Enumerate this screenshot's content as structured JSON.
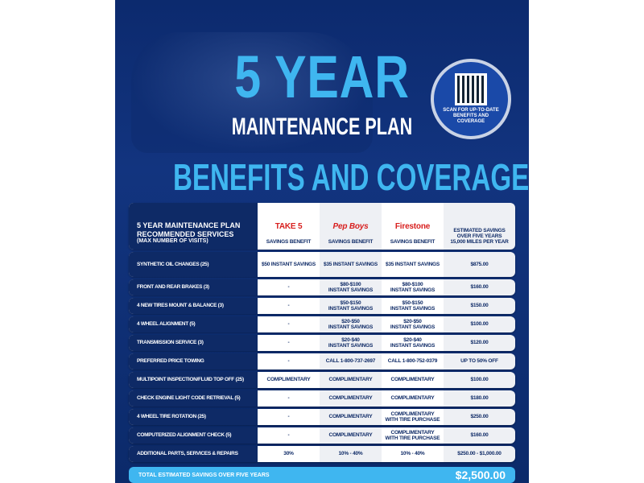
{
  "title": {
    "line1": "5 YEAR",
    "line2": "MAINTENANCE PLAN",
    "line3": "BENEFITS AND COVERAGE"
  },
  "qr": {
    "caption": "SCAN FOR UP-TO-DATE BENEFITS AND COVERAGE"
  },
  "header": {
    "services": [
      "5 YEAR MAINTENANCE PLAN",
      "RECOMMENDED SERVICES",
      "(MAX NUMBER OF VISITS)"
    ],
    "brands": [
      {
        "logo": "TAKE 5",
        "label": "SAVINGS BENEFIT",
        "color": "#d8201f"
      },
      {
        "logo": "Pep Boys",
        "label": "SAVINGS BENEFIT",
        "color": "#d8201f"
      },
      {
        "logo": "Firestone",
        "label": "SAVINGS BENEFIT",
        "color": "#d8201f"
      }
    ],
    "estimated": "ESTIMATED SAVINGS\nOVER FIVE YEARS\n15,000 MILES PER YEAR"
  },
  "rows": [
    [
      "SYNTHETIC OIL CHANGES (25)",
      "$50 INSTANT SAVINGS",
      "$35 INSTANT SAVINGS",
      "$35 INSTANT SAVINGS",
      "$875.00"
    ],
    [
      "FRONT AND REAR BRAKES (3)",
      "-",
      "$80-$100\nINSTANT SAVINGS",
      "$80-$100\nINSTANT SAVINGS",
      "$160.00"
    ],
    [
      "4 NEW TIRES MOUNT & BALANCE (3)",
      "-",
      "$50-$150\nINSTANT SAVINGS",
      "$50-$150\nINSTANT SAVINGS",
      "$150.00"
    ],
    [
      "4 WHEEL ALIGNMENT (5)",
      "-",
      "$20-$50\nINSTANT SAVINGS",
      "$20-$50\nINSTANT SAVINGS",
      "$100.00"
    ],
    [
      "TRANSMISSION SERVICE (3)",
      "-",
      "$20-$40\nINSTANT SAVINGS",
      "$20-$40\nINSTANT SAVINGS",
      "$120.00"
    ],
    [
      "PREFERRED PRICE TOWING",
      "-",
      "CALL 1-800-737-2697",
      "CALL 1-800-752-0379",
      "UP TO 50% OFF"
    ],
    [
      "MULTIPOINT INSPECTION/FLUID TOP OFF (25)",
      "COMPLIMENTARY",
      "COMPLIMENTARY",
      "COMPLIMENTARY",
      "$100.00"
    ],
    [
      "CHECK ENGINE LIGHT CODE RETRIEVAL (5)",
      "-",
      "COMPLIMENTARY",
      "COMPLIMENTARY",
      "$180.00"
    ],
    [
      "4 WHEEL TIRE ROTATION (25)",
      "-",
      "COMPLIMENTARY",
      "COMPLIMENTARY\nWITH TIRE PURCHASE",
      "$250.00"
    ],
    [
      "COMPUTERIZED ALIGNMENT CHECK (5)",
      "-",
      "COMPLIMENTARY",
      "COMPLIMENTARY\nWITH TIRE PURCHASE",
      "$160.00"
    ],
    [
      "ADDITIONAL PARTS, SERVICES & REPAIRS",
      "30%",
      "10% - 40%",
      "10% - 40%",
      "$250.00 - $1,000.00"
    ]
  ],
  "total": {
    "label": "TOTAL ESTIMATED SAVINGS OVER FIVE YEARS",
    "value": "$2,500.00"
  }
}
